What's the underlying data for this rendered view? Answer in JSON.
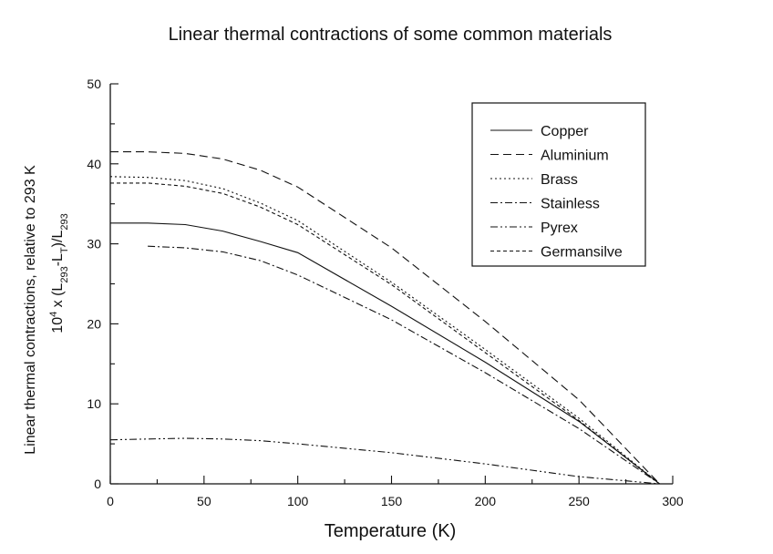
{
  "chart_data": {
    "type": "line",
    "title": "Linear thermal contractions of some common materials",
    "xlabel": "Temperature (K)",
    "ylabel_line1": "Linear thermal contractions, relative to 293 K",
    "ylabel_line2": {
      "base": "10",
      "exp": "4",
      "times": " x (L",
      "sub1": "293",
      "mid": "-L",
      "sub2": "T",
      "close": ")/L",
      "sub3": "293"
    },
    "xlim": [
      0,
      300
    ],
    "ylim": [
      0,
      50
    ],
    "xticks": [
      0,
      50,
      100,
      150,
      200,
      250,
      300
    ],
    "yticks": [
      0,
      10,
      20,
      30,
      40,
      50
    ],
    "legend_position": "top-right",
    "series": [
      {
        "name": "Copper",
        "dash": "solid",
        "points": [
          [
            0,
            32.6
          ],
          [
            20,
            32.6
          ],
          [
            40,
            32.4
          ],
          [
            60,
            31.6
          ],
          [
            80,
            30.3
          ],
          [
            100,
            28.9
          ],
          [
            150,
            22.2
          ],
          [
            200,
            15.2
          ],
          [
            250,
            7.8
          ],
          [
            293,
            0
          ]
        ]
      },
      {
        "name": "Aluminium",
        "dash": "long-dash",
        "points": [
          [
            0,
            41.5
          ],
          [
            20,
            41.5
          ],
          [
            40,
            41.3
          ],
          [
            60,
            40.6
          ],
          [
            80,
            39.2
          ],
          [
            100,
            37.1
          ],
          [
            150,
            29.5
          ],
          [
            200,
            20.3
          ],
          [
            250,
            10.5
          ],
          [
            293,
            0
          ]
        ]
      },
      {
        "name": "Brass",
        "dash": "dot",
        "points": [
          [
            0,
            38.4
          ],
          [
            20,
            38.3
          ],
          [
            40,
            37.9
          ],
          [
            60,
            36.9
          ],
          [
            80,
            35.1
          ],
          [
            100,
            32.9
          ],
          [
            150,
            25.2
          ],
          [
            200,
            16.8
          ],
          [
            250,
            8.2
          ],
          [
            293,
            0
          ]
        ]
      },
      {
        "name": "Stainless",
        "dash": "dash-dot",
        "points": [
          [
            20,
            29.7
          ],
          [
            40,
            29.5
          ],
          [
            60,
            29.0
          ],
          [
            80,
            27.9
          ],
          [
            100,
            26.1
          ],
          [
            150,
            20.5
          ],
          [
            200,
            13.9
          ],
          [
            250,
            6.9
          ],
          [
            293,
            0
          ]
        ]
      },
      {
        "name": "Pyrex",
        "dash": "dash-dot-dot",
        "points": [
          [
            0,
            5.5
          ],
          [
            20,
            5.6
          ],
          [
            40,
            5.7
          ],
          [
            60,
            5.6
          ],
          [
            80,
            5.4
          ],
          [
            100,
            5.0
          ],
          [
            150,
            3.9
          ],
          [
            200,
            2.5
          ],
          [
            250,
            0.9
          ],
          [
            293,
            0
          ]
        ]
      },
      {
        "name": "Germansilve",
        "dash": "short-dash",
        "points": [
          [
            0,
            37.6
          ],
          [
            20,
            37.6
          ],
          [
            40,
            37.2
          ],
          [
            60,
            36.3
          ],
          [
            80,
            34.6
          ],
          [
            100,
            32.4
          ],
          [
            150,
            24.9
          ],
          [
            200,
            16.4
          ],
          [
            250,
            7.9
          ],
          [
            293,
            0
          ]
        ]
      }
    ]
  }
}
